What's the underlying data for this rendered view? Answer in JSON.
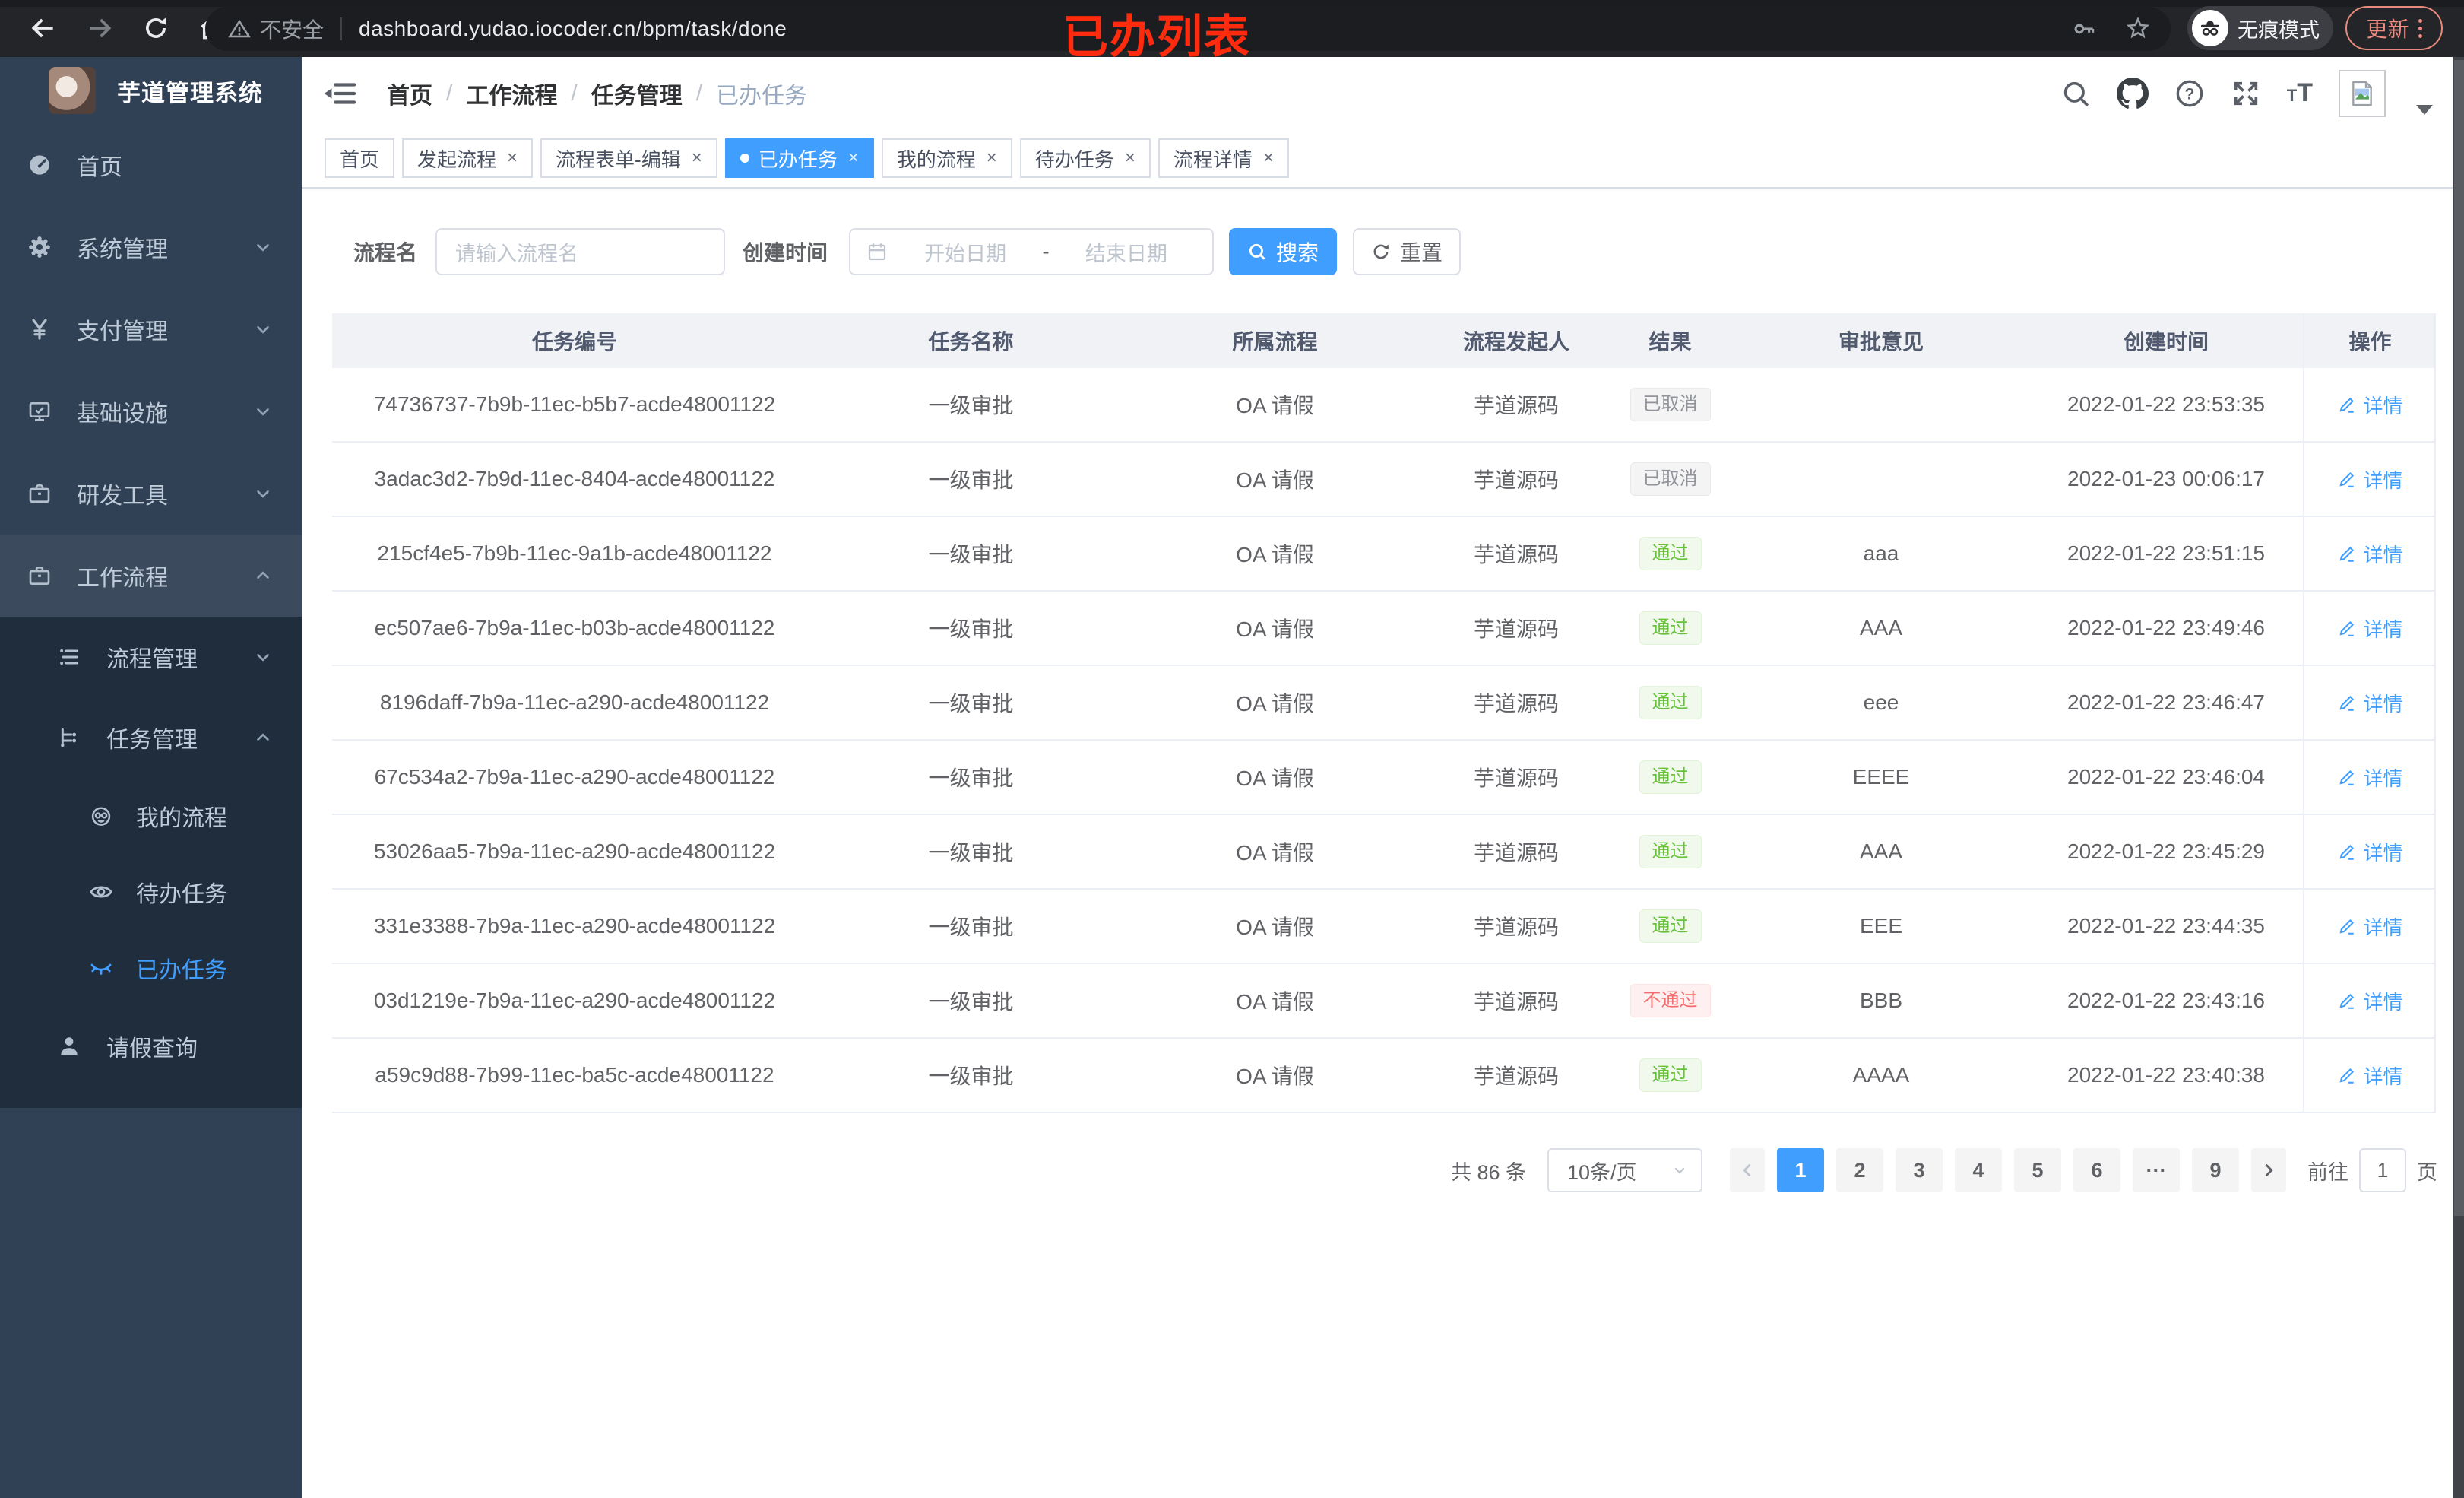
{
  "browser": {
    "security_warning": "不安全",
    "url": "dashboard.yudao.iocoder.cn/bpm/task/done",
    "incognito_label": "无痕模式",
    "update_label": "更新",
    "annotation": "已办列表"
  },
  "sidebar": {
    "app_title": "芋道管理系统",
    "items": [
      {
        "label": "首页",
        "icon": "dashboard-icon",
        "chevron": null,
        "hl": false,
        "active": false
      },
      {
        "label": "系统管理",
        "icon": "gear-icon",
        "chevron": "down",
        "hl": false,
        "active": false
      },
      {
        "label": "支付管理",
        "icon": "yen-icon",
        "chevron": "down",
        "hl": false,
        "active": false
      },
      {
        "label": "基础设施",
        "icon": "monitor-icon",
        "chevron": "down",
        "hl": false,
        "active": false
      },
      {
        "label": "研发工具",
        "icon": "briefcase-icon",
        "chevron": "down",
        "hl": false,
        "active": false
      },
      {
        "label": "工作流程",
        "icon": "briefcase-icon",
        "chevron": "up",
        "hl": true,
        "active": false
      }
    ],
    "submenu": [
      {
        "label": "流程管理",
        "icon": "list-icon",
        "chevron": "down",
        "level": 1,
        "active": false
      },
      {
        "label": "任务管理",
        "icon": "tree-icon",
        "chevron": "up",
        "level": 1,
        "active": false
      },
      {
        "label": "我的流程",
        "icon": "robot-icon",
        "chevron": null,
        "level": 2,
        "active": false
      },
      {
        "label": "待办任务",
        "icon": "eye-icon",
        "chevron": null,
        "level": 2,
        "active": false
      },
      {
        "label": "已办任务",
        "icon": "eye-closed-icon",
        "chevron": null,
        "level": 2,
        "active": true
      },
      {
        "label": "请假查询",
        "icon": "user-icon",
        "chevron": null,
        "level": 1,
        "active": false
      }
    ]
  },
  "header": {
    "breadcrumb": [
      "首页",
      "工作流程",
      "任务管理",
      "已办任务"
    ],
    "fontsize_small": "T",
    "fontsize_big": "T"
  },
  "tabs": [
    {
      "label": "首页",
      "closable": false,
      "active": false
    },
    {
      "label": "发起流程",
      "closable": true,
      "active": false
    },
    {
      "label": "流程表单-编辑",
      "closable": true,
      "active": false
    },
    {
      "label": "已办任务",
      "closable": true,
      "active": true
    },
    {
      "label": "我的流程",
      "closable": true,
      "active": false
    },
    {
      "label": "待办任务",
      "closable": true,
      "active": false
    },
    {
      "label": "流程详情",
      "closable": true,
      "active": false
    }
  ],
  "filters": {
    "name_label": "流程名",
    "name_placeholder": "请输入流程名",
    "time_label": "创建时间",
    "start_placeholder": "开始日期",
    "range_separator": "-",
    "end_placeholder": "结束日期",
    "search_label": "搜索",
    "reset_label": "重置"
  },
  "table": {
    "columns": [
      "任务编号",
      "任务名称",
      "所属流程",
      "流程发起人",
      "结果",
      "审批意见",
      "创建时间",
      "操作"
    ],
    "action_label": "详情",
    "rows": [
      {
        "id": "74736737-7b9b-11ec-b5b7-acde48001122",
        "name": "一级审批",
        "process": "OA 请假",
        "starter": "芋道源码",
        "result": "已取消",
        "result_type": "info",
        "opinion": "",
        "created": "2022-01-22 23:53:35"
      },
      {
        "id": "3adac3d2-7b9d-11ec-8404-acde48001122",
        "name": "一级审批",
        "process": "OA 请假",
        "starter": "芋道源码",
        "result": "已取消",
        "result_type": "info",
        "opinion": "",
        "created": "2022-01-23 00:06:17"
      },
      {
        "id": "215cf4e5-7b9b-11ec-9a1b-acde48001122",
        "name": "一级审批",
        "process": "OA 请假",
        "starter": "芋道源码",
        "result": "通过",
        "result_type": "success",
        "opinion": "aaa",
        "created": "2022-01-22 23:51:15"
      },
      {
        "id": "ec507ae6-7b9a-11ec-b03b-acde48001122",
        "name": "一级审批",
        "process": "OA 请假",
        "starter": "芋道源码",
        "result": "通过",
        "result_type": "success",
        "opinion": "AAA",
        "created": "2022-01-22 23:49:46"
      },
      {
        "id": "8196daff-7b9a-11ec-a290-acde48001122",
        "name": "一级审批",
        "process": "OA 请假",
        "starter": "芋道源码",
        "result": "通过",
        "result_type": "success",
        "opinion": "eee",
        "created": "2022-01-22 23:46:47"
      },
      {
        "id": "67c534a2-7b9a-11ec-a290-acde48001122",
        "name": "一级审批",
        "process": "OA 请假",
        "starter": "芋道源码",
        "result": "通过",
        "result_type": "success",
        "opinion": "EEEE",
        "created": "2022-01-22 23:46:04"
      },
      {
        "id": "53026aa5-7b9a-11ec-a290-acde48001122",
        "name": "一级审批",
        "process": "OA 请假",
        "starter": "芋道源码",
        "result": "通过",
        "result_type": "success",
        "opinion": "AAA",
        "created": "2022-01-22 23:45:29"
      },
      {
        "id": "331e3388-7b9a-11ec-a290-acde48001122",
        "name": "一级审批",
        "process": "OA 请假",
        "starter": "芋道源码",
        "result": "通过",
        "result_type": "success",
        "opinion": "EEE",
        "created": "2022-01-22 23:44:35"
      },
      {
        "id": "03d1219e-7b9a-11ec-a290-acde48001122",
        "name": "一级审批",
        "process": "OA 请假",
        "starter": "芋道源码",
        "result": "不通过",
        "result_type": "danger",
        "opinion": "BBB",
        "created": "2022-01-22 23:43:16"
      },
      {
        "id": "a59c9d88-7b99-11ec-ba5c-acde48001122",
        "name": "一级审批",
        "process": "OA 请假",
        "starter": "芋道源码",
        "result": "通过",
        "result_type": "success",
        "opinion": "AAAA",
        "created": "2022-01-22 23:40:38"
      }
    ]
  },
  "pagination": {
    "total_label": "共 86 条",
    "page_size_label": "10条/页",
    "pages": [
      "1",
      "2",
      "3",
      "4",
      "5",
      "6",
      "···",
      "9"
    ],
    "active_page": "1",
    "goto_label": "前往",
    "goto_value": "1",
    "page_unit": "页"
  },
  "colors": {
    "accent": "#409eff",
    "sidebar_bg": "#304156",
    "submenu_bg": "#1f2d3d",
    "success": "#67c23a",
    "danger": "#f56c6c",
    "info": "#909399"
  }
}
